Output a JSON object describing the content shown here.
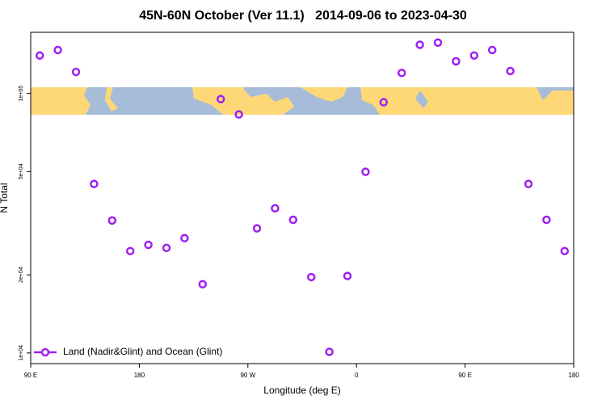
{
  "chart_data": {
    "type": "scatter",
    "title": "45N-60N October (Ver 11.1)   2014-09-06 to 2023-04-30",
    "xlabel": "Longitude (deg E)",
    "ylabel": "N Total",
    "x": [
      97.5,
      112.5,
      127.5,
      142.5,
      157.5,
      172.5,
      187.5,
      202.5,
      217.5,
      232.5,
      247.5,
      262.5,
      277.5,
      292.5,
      307.5,
      322.5,
      337.5,
      352.5,
      367.5,
      382.5,
      397.5,
      412.5,
      427.5,
      442.5,
      457.5,
      472.5,
      487.5,
      502.5,
      517.5,
      532.5
    ],
    "series": [
      {
        "name": "Land (Nadir&Glint) and Ocean (Glint)",
        "color": "#a020f0",
        "values": [
          140000,
          147000,
          121000,
          44800,
          32400,
          24700,
          26100,
          25400,
          27700,
          18400,
          95100,
          83000,
          30200,
          36100,
          32600,
          19600,
          10100,
          19800,
          49900,
          92500,
          120000,
          154000,
          157000,
          133000,
          140000,
          147000,
          122000,
          44800,
          32600,
          24700
        ]
      }
    ],
    "xlim": [
      90,
      540
    ],
    "xticks": [
      {
        "value": 90,
        "label": "90 E"
      },
      {
        "value": 180,
        "label": "180"
      },
      {
        "value": 270,
        "label": "90 W"
      },
      {
        "value": 360,
        "label": "0"
      },
      {
        "value": 450,
        "label": "90 E"
      },
      {
        "value": 540,
        "label": "180"
      }
    ],
    "ylim": [
      9100,
      172000
    ],
    "yticks": [
      {
        "value": 10000,
        "label": "1e+04"
      },
      {
        "value": 20000,
        "label": "2e+04"
      },
      {
        "value": 50000,
        "label": "5e+04"
      },
      {
        "value": 100000,
        "label": "1e+05"
      }
    ],
    "ylog": true,
    "legend": "bottom-left"
  }
}
